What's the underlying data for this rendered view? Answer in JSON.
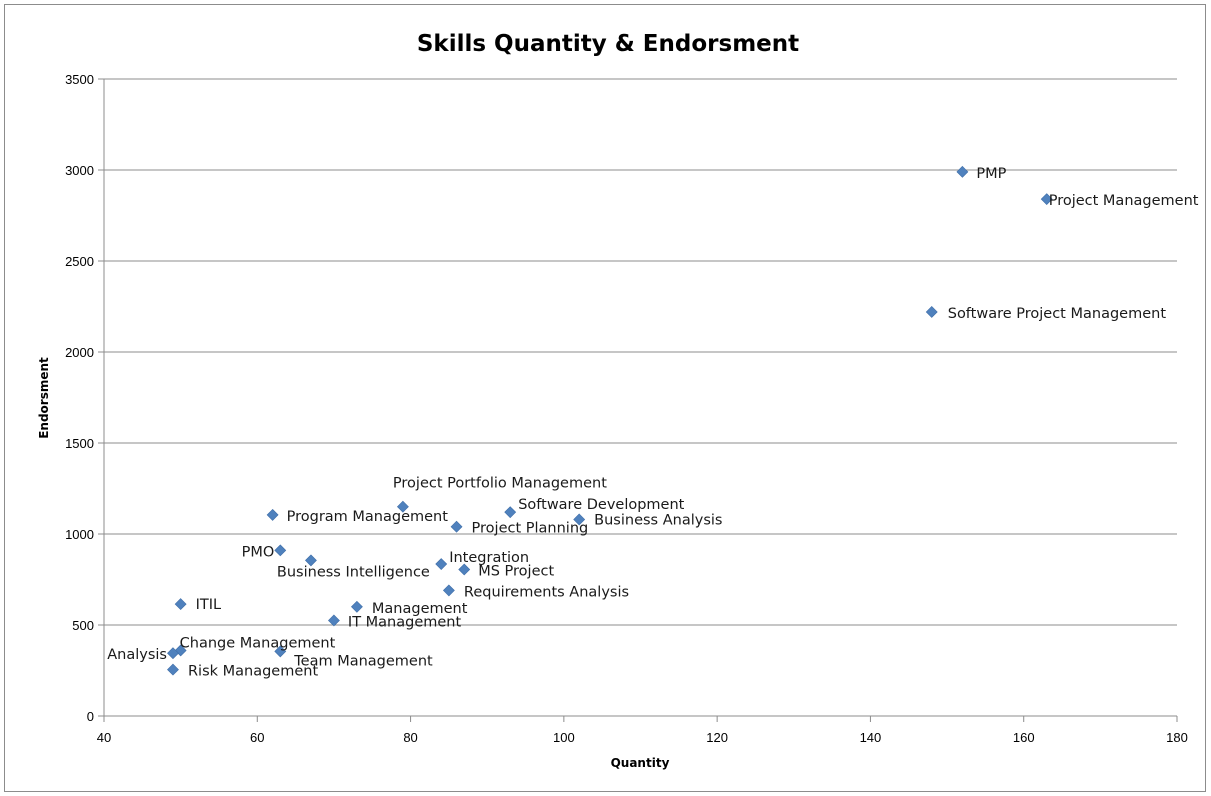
{
  "chart_data": {
    "type": "scatter",
    "title": "Skills Quantity & Endorsment",
    "xlabel": "Quantity",
    "ylabel": "Endorsment",
    "xlim": [
      40,
      180
    ],
    "ylim": [
      0,
      3500
    ],
    "xticks": [
      40,
      60,
      80,
      100,
      120,
      140,
      160,
      180
    ],
    "yticks": [
      0,
      500,
      1000,
      1500,
      2000,
      2500,
      3000,
      3500
    ],
    "grid": "horizontal",
    "legend": "none",
    "marker_color": "#4f81bd",
    "points": [
      {
        "label": "PMP",
        "x": 152,
        "y": 2990
      },
      {
        "label": "Project Management",
        "x": 163,
        "y": 2840
      },
      {
        "label": "Software Project Management",
        "x": 148,
        "y": 2220
      },
      {
        "label": "Project Portfolio Management",
        "x": 79,
        "y": 1150
      },
      {
        "label": "Software Development",
        "x": 93,
        "y": 1120
      },
      {
        "label": "Program Management",
        "x": 62,
        "y": 1105
      },
      {
        "label": "Business Analysis",
        "x": 102,
        "y": 1080
      },
      {
        "label": "Project Planning",
        "x": 86,
        "y": 1040
      },
      {
        "label": "PMO",
        "x": 63,
        "y": 910
      },
      {
        "label": "Business Intelligence",
        "x": 67,
        "y": 855
      },
      {
        "label": "Integration",
        "x": 84,
        "y": 835
      },
      {
        "label": "MS Project",
        "x": 87,
        "y": 805
      },
      {
        "label": "Requirements Analysis",
        "x": 85,
        "y": 690
      },
      {
        "label": "ITIL",
        "x": 50,
        "y": 615
      },
      {
        "label": "Management",
        "x": 73,
        "y": 600
      },
      {
        "label": "IT Management",
        "x": 70,
        "y": 525
      },
      {
        "label": "Change Management",
        "x": 50,
        "y": 360
      },
      {
        "label": "Team Management",
        "x": 63,
        "y": 355
      },
      {
        "label": "Analysis",
        "x": 49,
        "y": 345
      },
      {
        "label": "Risk Management",
        "x": 49,
        "y": 255
      }
    ]
  }
}
